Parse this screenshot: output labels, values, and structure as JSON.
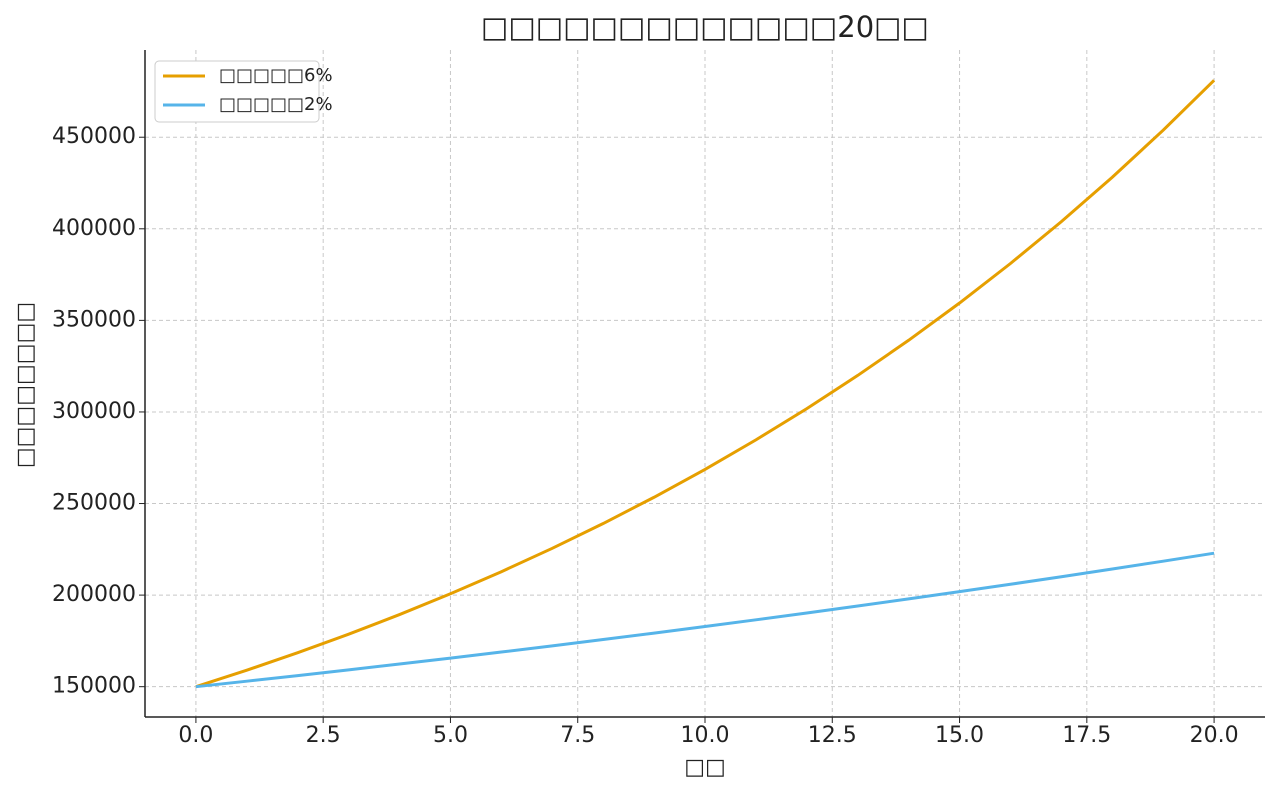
{
  "chart_data": {
    "type": "line",
    "title": "□□□□□□□□□□□□□20□□",
    "x_label": "□□",
    "y_label": "□□□□□□□□",
    "x": [
      0,
      1,
      2,
      3,
      4,
      5,
      6,
      7,
      8,
      9,
      10,
      11,
      12,
      13,
      14,
      15,
      16,
      17,
      18,
      19,
      20
    ],
    "series": [
      {
        "name": "□□□□□6%",
        "color": "#e69f00",
        "values": [
          150000,
          159000,
          168540,
          178652,
          189372,
          200734,
          212779,
          225545,
          239078,
          253422,
          268627,
          284745,
          301830,
          319940,
          339136,
          359484,
          381053,
          403916,
          428151,
          453840,
          481070
        ]
      },
      {
        "name": "□□□□□2%",
        "color": "#56b4e9",
        "values": [
          150000,
          153000,
          156060,
          159181,
          162365,
          165612,
          168924,
          172303,
          175749,
          179264,
          182849,
          186506,
          190236,
          194041,
          197922,
          201880,
          205918,
          210036,
          214237,
          218522,
          222892
        ]
      }
    ],
    "xlim": [
      -1,
      21
    ],
    "ylim": [
      133446,
      497624
    ],
    "xticks": [
      {
        "value": 0,
        "label": "0.0"
      },
      2.5,
      {
        "value": 5,
        "label": "5.0"
      },
      7.5,
      {
        "value": 10,
        "label": "10.0"
      },
      12.5,
      {
        "value": 15,
        "label": "15.0"
      },
      17.5,
      {
        "value": 20,
        "label": "20.0"
      }
    ],
    "yticks": [
      150000,
      200000,
      250000,
      300000,
      350000,
      400000,
      450000
    ],
    "grid": true,
    "legend": "upper-left"
  }
}
